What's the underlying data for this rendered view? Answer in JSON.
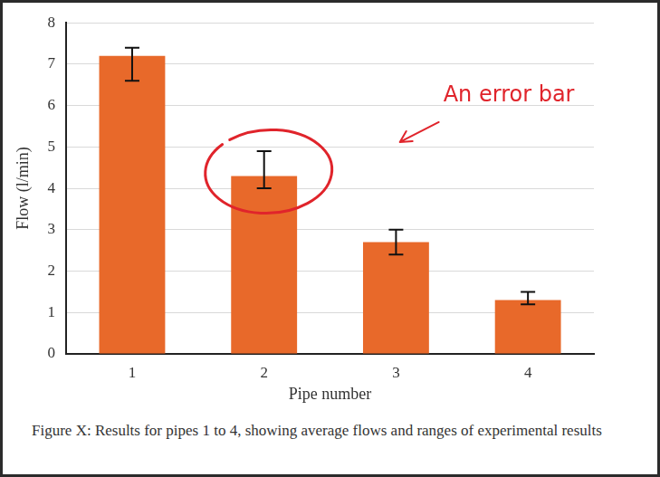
{
  "chart_data": {
    "type": "bar",
    "x_label": "Pipe number",
    "y_label": "Flow (l/min)",
    "caption": "Figure X: Results for pipes 1 to 4, showing average flows and ranges of experimental results",
    "categories": [
      "1",
      "2",
      "3",
      "4"
    ],
    "values": [
      7.2,
      4.3,
      2.7,
      1.3
    ],
    "range_low": [
      6.6,
      4.0,
      2.4,
      1.2
    ],
    "range_high": [
      7.4,
      4.9,
      3.0,
      1.5
    ],
    "color": "#e8692a",
    "ylim": [
      0,
      8
    ],
    "yticks": [
      0,
      1,
      2,
      3,
      4,
      5,
      6,
      7,
      8
    ],
    "grid": true,
    "annotations": [
      {
        "text": "An error bar",
        "category": "2"
      }
    ]
  }
}
